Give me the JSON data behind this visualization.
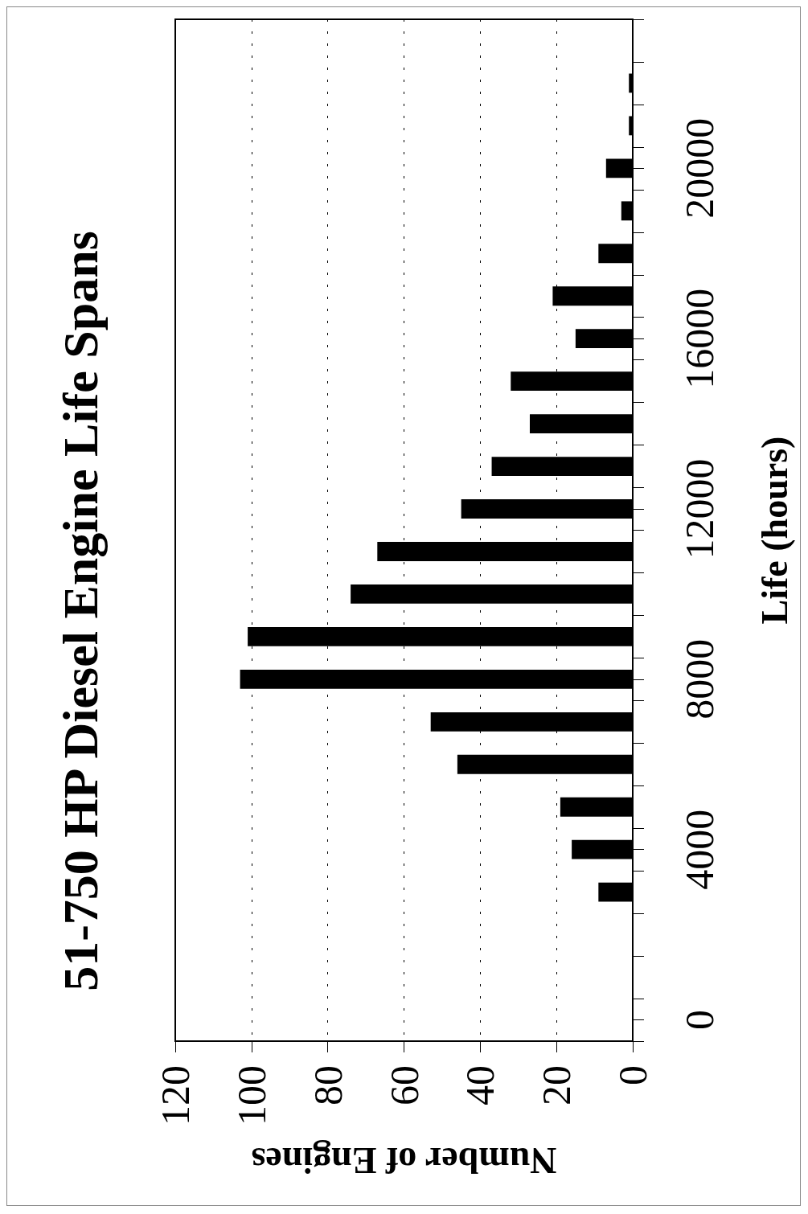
{
  "chart_data": {
    "type": "bar",
    "orientation": "horizontal",
    "title": "51-750 HP Diesel Engine Life Spans",
    "xlabel": "Number of Engines",
    "ylabel": "Life (hours)",
    "x": [
      3000,
      4000,
      5000,
      6000,
      7000,
      8000,
      9000,
      10000,
      11000,
      12000,
      13000,
      14000,
      15000,
      16000,
      17000,
      18000,
      19000,
      20000,
      21000,
      22000
    ],
    "values": [
      9,
      16,
      19,
      46,
      53,
      103,
      101,
      74,
      67,
      45,
      37,
      27,
      32,
      15,
      21,
      9,
      3,
      7,
      1,
      1
    ],
    "color": "#000000",
    "xlim": [
      120,
      0
    ],
    "xticks": [
      0,
      20,
      40,
      60,
      80,
      100,
      120
    ],
    "ylim": [
      -500,
      23500
    ],
    "yticks": [
      {
        "value": -500,
        "label": null
      },
      0,
      {
        "value": 500,
        "label": null
      },
      {
        "value": 1500,
        "label": null
      },
      {
        "value": 2500,
        "label": null
      },
      {
        "value": 3500,
        "label": null
      },
      4000,
      {
        "value": 4500,
        "label": null
      },
      {
        "value": 5500,
        "label": null
      },
      {
        "value": 6500,
        "label": null
      },
      {
        "value": 7500,
        "label": null
      },
      8000,
      {
        "value": 8500,
        "label": null
      },
      {
        "value": 9500,
        "label": null
      },
      {
        "value": 10500,
        "label": null
      },
      {
        "value": 11500,
        "label": null
      },
      12000,
      {
        "value": 12500,
        "label": null
      },
      {
        "value": 13500,
        "label": null
      },
      {
        "value": 14500,
        "label": null
      },
      {
        "value": 15500,
        "label": null
      },
      16000,
      {
        "value": 16500,
        "label": null
      },
      {
        "value": 17500,
        "label": null
      },
      {
        "value": 18500,
        "label": null
      },
      {
        "value": 19500,
        "label": null
      },
      20000,
      {
        "value": 20500,
        "label": null
      },
      {
        "value": 21500,
        "label": null
      },
      {
        "value": 22500,
        "label": null
      },
      {
        "value": 23500,
        "label": null
      }
    ],
    "grid": "x"
  }
}
